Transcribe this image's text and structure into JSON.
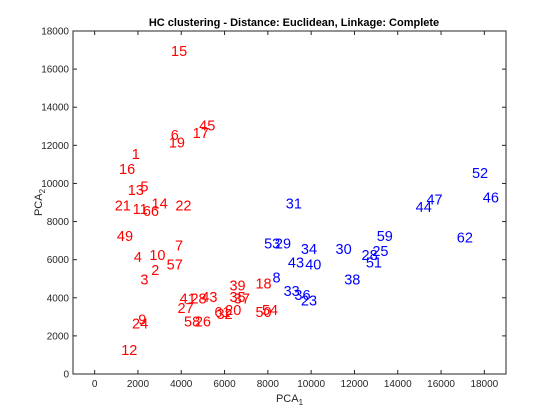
{
  "chart_data": {
    "type": "scatter",
    "title": "HC clustering - Distance: Euclidean, Linkage: Complete",
    "xlabel": "PCA",
    "xlabel_sub": "1",
    "ylabel": "PCA",
    "ylabel_sub": "2",
    "xlim": [
      -1000,
      19000
    ],
    "ylim": [
      0,
      18000
    ],
    "x_ticks": [
      0,
      2000,
      4000,
      6000,
      8000,
      10000,
      12000,
      14000,
      16000,
      18000
    ],
    "y_ticks": [
      0,
      2000,
      4000,
      6000,
      8000,
      10000,
      12000,
      14000,
      16000,
      18000
    ],
    "grid": false,
    "colors": {
      "cluster_1": "#ff0000",
      "cluster_2": "#0000ff",
      "axis": "#262626"
    },
    "series": [
      {
        "cluster": "cluster_1",
        "points": [
          {
            "label": "15",
            "x": 3900,
            "y": 16900
          },
          {
            "label": "45",
            "x": 5200,
            "y": 13000
          },
          {
            "label": "17",
            "x": 4900,
            "y": 12600
          },
          {
            "label": "6",
            "x": 3700,
            "y": 12500
          },
          {
            "label": "19",
            "x": 3800,
            "y": 12100
          },
          {
            "label": "1",
            "x": 1900,
            "y": 11500
          },
          {
            "label": "16",
            "x": 1500,
            "y": 10700
          },
          {
            "label": "5",
            "x": 2300,
            "y": 9800
          },
          {
            "label": "13",
            "x": 1900,
            "y": 9600
          },
          {
            "label": "14",
            "x": 3000,
            "y": 8900
          },
          {
            "label": "21",
            "x": 1300,
            "y": 8800
          },
          {
            "label": "22",
            "x": 4100,
            "y": 8800
          },
          {
            "label": "11",
            "x": 2100,
            "y": 8600
          },
          {
            "label": "66",
            "x": 2600,
            "y": 8500
          },
          {
            "label": "49",
            "x": 1400,
            "y": 7200
          },
          {
            "label": "7",
            "x": 3900,
            "y": 6700
          },
          {
            "label": "4",
            "x": 2000,
            "y": 6100
          },
          {
            "label": "10",
            "x": 2900,
            "y": 6200
          },
          {
            "label": "57",
            "x": 3700,
            "y": 5700
          },
          {
            "label": "2",
            "x": 2800,
            "y": 5400
          },
          {
            "label": "3",
            "x": 2300,
            "y": 4900
          },
          {
            "label": "18",
            "x": 7800,
            "y": 4700
          },
          {
            "label": "39",
            "x": 6600,
            "y": 4600
          },
          {
            "label": "41",
            "x": 4300,
            "y": 3900
          },
          {
            "label": "28",
            "x": 4800,
            "y": 3900
          },
          {
            "label": "43",
            "x": 5300,
            "y": 4000
          },
          {
            "label": "35",
            "x": 6600,
            "y": 4000
          },
          {
            "label": "37",
            "x": 6800,
            "y": 3900
          },
          {
            "label": "27",
            "x": 4200,
            "y": 3400
          },
          {
            "label": "61",
            "x": 5900,
            "y": 3200
          },
          {
            "label": "20",
            "x": 6400,
            "y": 3300
          },
          {
            "label": "32",
            "x": 6000,
            "y": 3100
          },
          {
            "label": "50",
            "x": 7800,
            "y": 3200
          },
          {
            "label": "54",
            "x": 8100,
            "y": 3300
          },
          {
            "label": "58",
            "x": 4500,
            "y": 2700
          },
          {
            "label": "26",
            "x": 5000,
            "y": 2700
          },
          {
            "label": "9",
            "x": 2200,
            "y": 2800
          },
          {
            "label": "24",
            "x": 2100,
            "y": 2600
          },
          {
            "label": "12",
            "x": 1600,
            "y": 1200
          }
        ]
      },
      {
        "cluster": "cluster_2",
        "points": [
          {
            "label": "52",
            "x": 17800,
            "y": 10500
          },
          {
            "label": "46",
            "x": 18300,
            "y": 9200
          },
          {
            "label": "47",
            "x": 15700,
            "y": 9100
          },
          {
            "label": "44",
            "x": 15200,
            "y": 8700
          },
          {
            "label": "31",
            "x": 9200,
            "y": 8900
          },
          {
            "label": "62",
            "x": 17100,
            "y": 7100
          },
          {
            "label": "59",
            "x": 13400,
            "y": 7200
          },
          {
            "label": "53",
            "x": 8200,
            "y": 6800
          },
          {
            "label": "29",
            "x": 8700,
            "y": 6800
          },
          {
            "label": "34",
            "x": 9900,
            "y": 6500
          },
          {
            "label": "30",
            "x": 11500,
            "y": 6500
          },
          {
            "label": "25",
            "x": 13200,
            "y": 6400
          },
          {
            "label": "28",
            "x": 12700,
            "y": 6200
          },
          {
            "label": "51",
            "x": 12900,
            "y": 5800
          },
          {
            "label": "43",
            "x": 9300,
            "y": 5800
          },
          {
            "label": "40",
            "x": 10100,
            "y": 5700
          },
          {
            "label": "8",
            "x": 8400,
            "y": 5000
          },
          {
            "label": "38",
            "x": 11900,
            "y": 4900
          },
          {
            "label": "33",
            "x": 9100,
            "y": 4300
          },
          {
            "label": "36",
            "x": 9600,
            "y": 4100
          },
          {
            "label": "23",
            "x": 9900,
            "y": 3800
          }
        ]
      }
    ]
  }
}
